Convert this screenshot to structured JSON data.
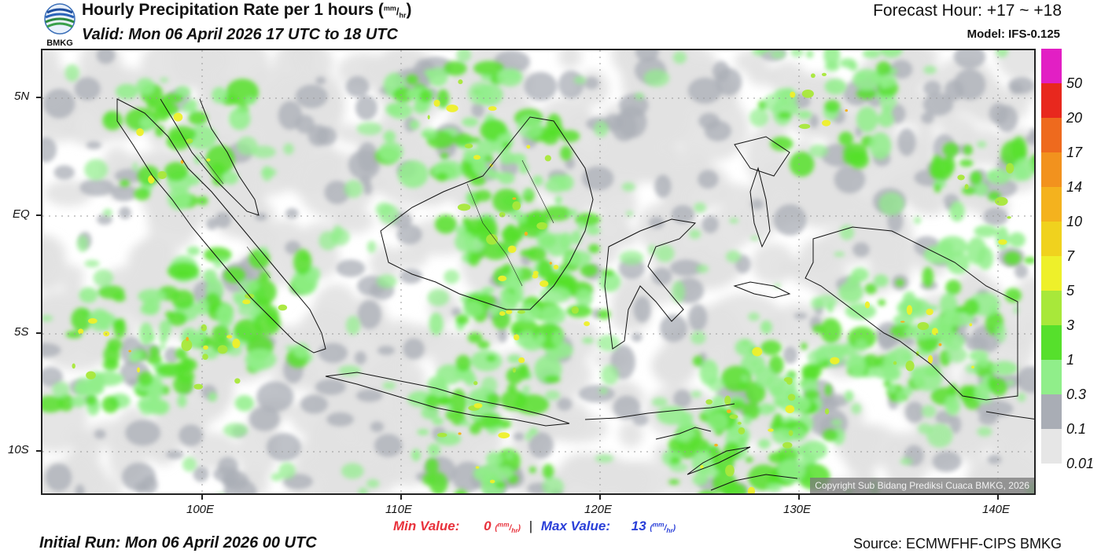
{
  "header": {
    "logo_text": "BMKG",
    "title": "Hourly Precipitation Rate per 1 hours (",
    "title_unit_num": "mm",
    "title_unit_den": "hr",
    "title_close": ")",
    "valid": "Valid: Mon 06 April 2026 17 UTC to 18 UTC",
    "forecast_hour": "Forecast Hour: +17 ~ +18",
    "model": "Model: IFS-0.125"
  },
  "map": {
    "lat_labels": [
      "5N",
      "EQ",
      "5S",
      "10S"
    ],
    "lon_labels": [
      "100E",
      "110E",
      "120E",
      "130E",
      "140E"
    ],
    "copyright": "Copyright Sub Bidang Prediksi Cuaca BMKG, 2026"
  },
  "colorbar": {
    "labels": [
      "50",
      "20",
      "17",
      "14",
      "10",
      "7",
      "5",
      "3",
      "1",
      "0.3",
      "0.1",
      "0.01"
    ],
    "colors": [
      "#e21fc4",
      "#e8281e",
      "#ee6a1e",
      "#f2921e",
      "#f4b21e",
      "#f0d21e",
      "#eef02a",
      "#a8e83a",
      "#56e02c",
      "#90ee8a",
      "#a9adb5",
      "#e6e6e6"
    ]
  },
  "footer": {
    "min_label": "Min Value:",
    "min_value": "0",
    "max_label": "Max Value:",
    "max_value": "13",
    "unit_num": "mm",
    "unit_den": "hr",
    "separator": "|",
    "initial_run": "Initial Run: Mon 06 April 2026 00 UTC",
    "source": "Source: ECMWFHF-CIPS BMKG"
  }
}
